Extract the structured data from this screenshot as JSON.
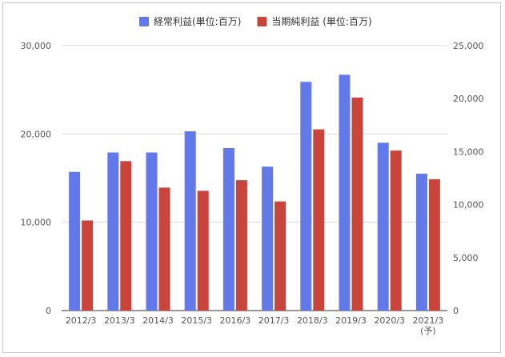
{
  "chart_data": {
    "type": "bar",
    "categories": [
      "2012/3",
      "2013/3",
      "2014/3",
      "2015/3",
      "2016/3",
      "2017/3",
      "2018/3",
      "2019/3",
      "2020/3",
      "2021/3"
    ],
    "category_sublabels": [
      "",
      "",
      "",
      "",
      "",
      "",
      "",
      "",
      "",
      "(予)"
    ],
    "series": [
      {
        "name": "経常利益(単位:百万)",
        "axis": "left",
        "color": "#6279ea",
        "values": [
          15700,
          17900,
          17900,
          20300,
          18400,
          16300,
          25900,
          26700,
          19000,
          15500
        ]
      },
      {
        "name": "当期純利益 (単位:百万)",
        "axis": "right",
        "color": "#c9453c",
        "values": [
          8500,
          14100,
          11600,
          11300,
          12300,
          10300,
          17100,
          20100,
          15100,
          12400
        ]
      }
    ],
    "y_left": {
      "min": 0,
      "max": 30000,
      "ticks": [
        "0",
        "10,000",
        "20,000",
        "30,000"
      ]
    },
    "y_right": {
      "min": 0,
      "max": 25000,
      "ticks": [
        "0",
        "5,000",
        "10,000",
        "15,000",
        "20,000",
        "25,000"
      ]
    },
    "grid": true,
    "legend_position": "top-center"
  }
}
